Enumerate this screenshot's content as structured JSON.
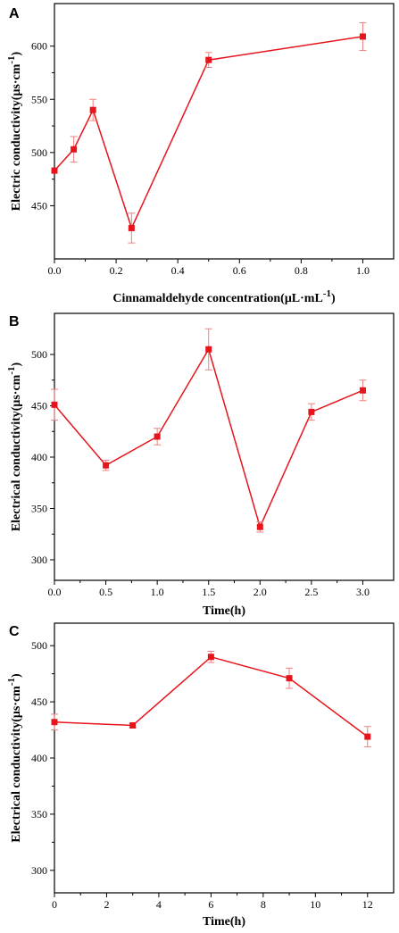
{
  "colors": {
    "series": "#e8141b",
    "errorbar": "#f08080",
    "axis": "#000000"
  },
  "chart_data": [
    {
      "type": "line",
      "panel": "A",
      "xlabel": "Cinnamaldehyde concentration(μL·mL",
      "xlabel_sup": "-1",
      "xlabel_end": ")",
      "ylabel": "Electric conductivity(μs·cm",
      "ylabel_sup": "-1",
      "ylabel_end": ")",
      "xlim": [
        0.0,
        1.1
      ],
      "ylim": [
        400,
        640
      ],
      "xticks": [
        0.0,
        0.2,
        0.4,
        0.6,
        0.8,
        1.0
      ],
      "xtick_labels": [
        "0.0",
        "0.2",
        "0.4",
        "0.6",
        "0.8",
        "1.0"
      ],
      "yticks": [
        450,
        500,
        550,
        600
      ],
      "ytick_labels": [
        "450",
        "500",
        "550",
        "600"
      ],
      "grid": false,
      "series": [
        {
          "x": [
            0.0,
            0.0625,
            0.125,
            0.25,
            0.5,
            1.0
          ],
          "y": [
            483,
            503,
            540,
            429,
            587,
            609
          ],
          "err": [
            0,
            12,
            10,
            14,
            7,
            13
          ]
        }
      ]
    },
    {
      "type": "line",
      "panel": "B",
      "xlabel": "Time(h)",
      "ylabel": "Electrical conductivity(μs·cm",
      "ylabel_sup": "-1",
      "ylabel_end": ")",
      "xlim": [
        0.0,
        3.3
      ],
      "ylim": [
        280,
        540
      ],
      "xticks": [
        0.0,
        0.5,
        1.0,
        1.5,
        2.0,
        2.5,
        3.0
      ],
      "xtick_labels": [
        "0.0",
        "0.5",
        "1.0",
        "1.5",
        "2.0",
        "2.5",
        "3.0"
      ],
      "yticks": [
        300,
        350,
        400,
        450,
        500
      ],
      "ytick_labels": [
        "300",
        "350",
        "400",
        "450",
        "500"
      ],
      "grid": false,
      "series": [
        {
          "x": [
            0.0,
            0.5,
            1.0,
            1.5,
            2.0,
            2.5,
            3.0
          ],
          "y": [
            451,
            392,
            420,
            505,
            332,
            444,
            465
          ],
          "err": [
            15,
            5,
            8,
            20,
            5,
            8,
            10
          ]
        }
      ]
    },
    {
      "type": "line",
      "panel": "C",
      "xlabel": "Time(h)",
      "ylabel": "Electrical conductivity(μs·cm",
      "ylabel_sup": "-1",
      "ylabel_end": ")",
      "xlim": [
        0,
        13
      ],
      "ylim": [
        280,
        520
      ],
      "xticks": [
        0,
        2,
        4,
        6,
        8,
        10,
        12
      ],
      "xtick_labels": [
        "0",
        "2",
        "4",
        "6",
        "8",
        "10",
        "12"
      ],
      "yticks": [
        300,
        350,
        400,
        450,
        500
      ],
      "ytick_labels": [
        "300",
        "350",
        "400",
        "450",
        "500"
      ],
      "grid": false,
      "series": [
        {
          "x": [
            0,
            3,
            6,
            9,
            12
          ],
          "y": [
            432,
            429,
            490,
            471,
            419
          ],
          "err": [
            7,
            2,
            5,
            9,
            9
          ]
        }
      ]
    }
  ]
}
